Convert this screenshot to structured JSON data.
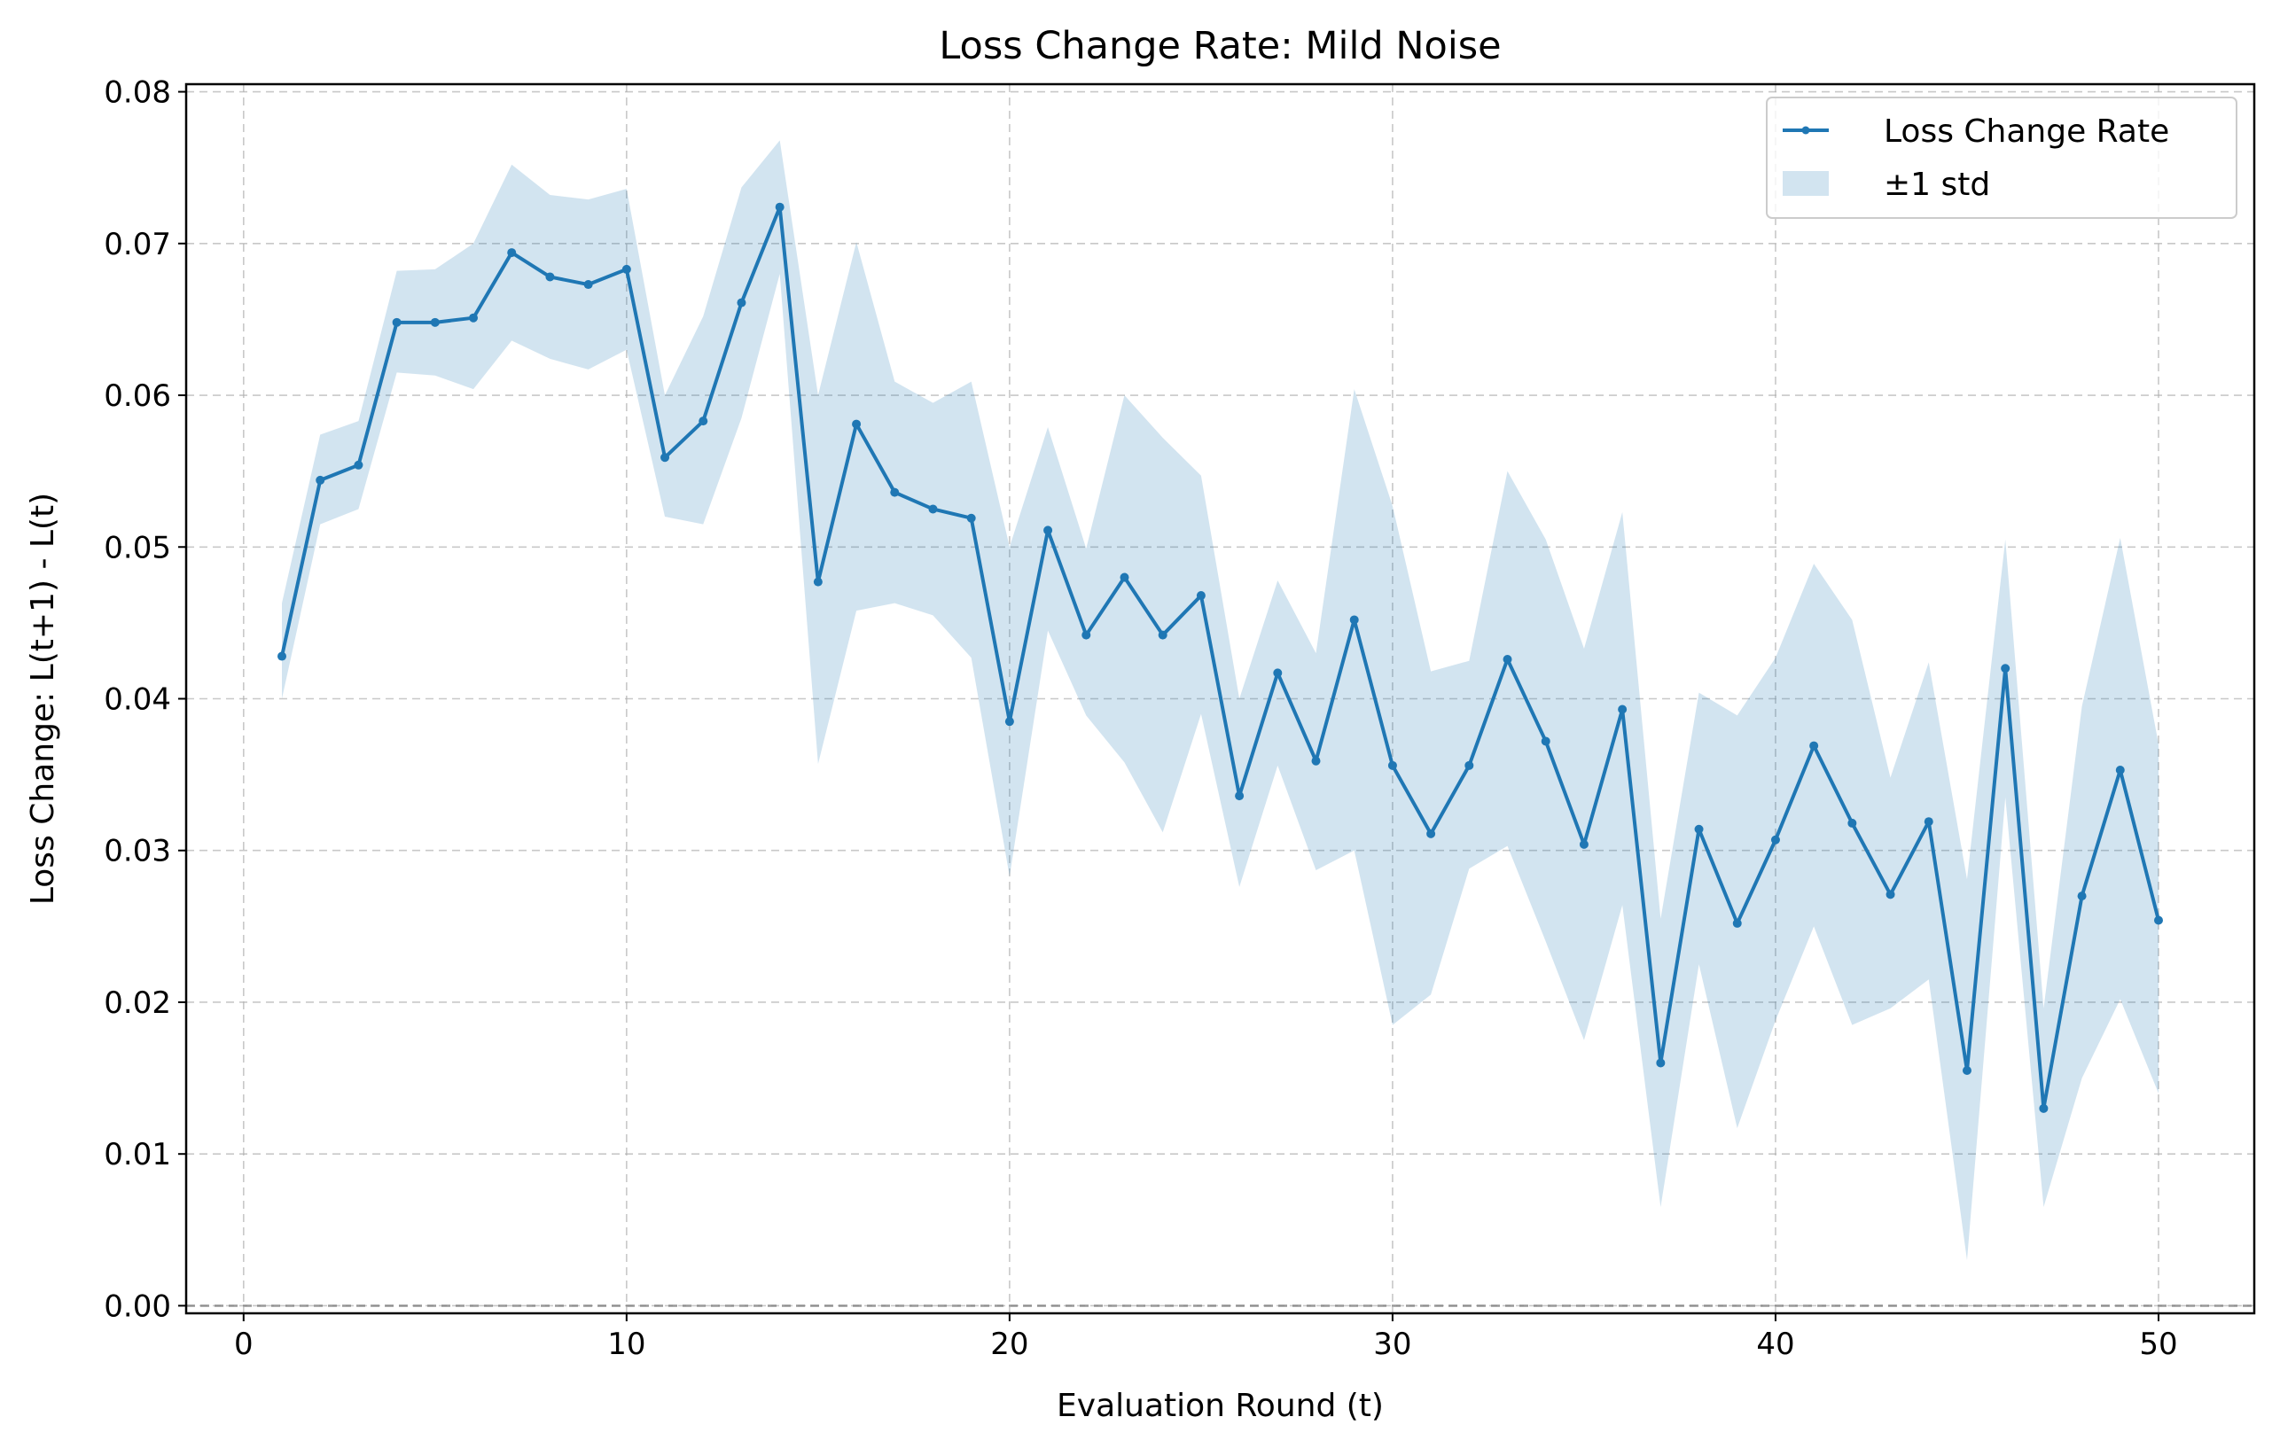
{
  "chart_data": {
    "type": "line",
    "title": "Loss Change Rate: Mild Noise",
    "xlabel": "Evaluation Round (t)",
    "ylabel": "Loss Change: L(t+1) - L(t)",
    "xlim": [
      -1.5,
      52.5
    ],
    "ylim": [
      -0.0005,
      0.0805
    ],
    "xticks": [
      0,
      10,
      20,
      30,
      40,
      50
    ],
    "yticks": [
      0.0,
      0.01,
      0.02,
      0.03,
      0.04,
      0.05,
      0.06,
      0.07,
      0.08
    ],
    "xtick_labels": [
      "0",
      "10",
      "20",
      "30",
      "40",
      "50"
    ],
    "ytick_labels": [
      "0.00",
      "0.01",
      "0.02",
      "0.03",
      "0.04",
      "0.05",
      "0.06",
      "0.07",
      "0.08"
    ],
    "grid": true,
    "legend_position": "top-right",
    "reference_line_y": 0.0,
    "colors": {
      "line": "#1f77b4",
      "band": "#1f77b4",
      "grid": "#b0b0b0",
      "reference": "#808080"
    },
    "series": [
      {
        "name": "Loss Change Rate",
        "x": [
          1,
          2,
          3,
          4,
          5,
          6,
          7,
          8,
          9,
          10,
          11,
          12,
          13,
          14,
          15,
          16,
          17,
          18,
          19,
          20,
          21,
          22,
          23,
          24,
          25,
          26,
          27,
          28,
          29,
          30,
          31,
          32,
          33,
          34,
          35,
          36,
          37,
          38,
          39,
          40,
          41,
          42,
          43,
          44,
          45,
          46,
          47,
          48,
          49,
          50
        ],
        "values": [
          0.0428,
          0.0544,
          0.0554,
          0.0648,
          0.0648,
          0.0651,
          0.0694,
          0.0678,
          0.0673,
          0.0683,
          0.0559,
          0.0583,
          0.0661,
          0.0724,
          0.0477,
          0.0581,
          0.0536,
          0.0525,
          0.0519,
          0.0385,
          0.0511,
          0.0442,
          0.048,
          0.0442,
          0.0468,
          0.0336,
          0.0417,
          0.0359,
          0.0452,
          0.0356,
          0.0311,
          0.0356,
          0.0426,
          0.0372,
          0.0304,
          0.0393,
          0.016,
          0.0314,
          0.0252,
          0.0307,
          0.0369,
          0.0318,
          0.0271,
          0.0319,
          0.0155,
          0.042,
          0.013,
          0.027,
          0.0353,
          0.0254
        ]
      },
      {
        "name": "±1 std",
        "x": [
          1,
          2,
          3,
          4,
          5,
          6,
          7,
          8,
          9,
          10,
          11,
          12,
          13,
          14,
          15,
          16,
          17,
          18,
          19,
          20,
          21,
          22,
          23,
          24,
          25,
          26,
          27,
          28,
          29,
          30,
          31,
          32,
          33,
          34,
          35,
          36,
          37,
          38,
          39,
          40,
          41,
          42,
          43,
          44,
          45,
          46,
          47,
          48,
          49,
          50
        ],
        "lower": [
          0.04,
          0.0515,
          0.0525,
          0.0615,
          0.0613,
          0.0604,
          0.0636,
          0.0624,
          0.0617,
          0.063,
          0.052,
          0.0515,
          0.0585,
          0.068,
          0.0357,
          0.0458,
          0.0463,
          0.0455,
          0.0427,
          0.0283,
          0.0445,
          0.0389,
          0.0358,
          0.0312,
          0.039,
          0.0276,
          0.0356,
          0.0287,
          0.03,
          0.0185,
          0.0205,
          0.0288,
          0.0303,
          0.024,
          0.0175,
          0.0264,
          0.0065,
          0.0225,
          0.0117,
          0.0188,
          0.025,
          0.0185,
          0.0196,
          0.0215,
          0.003,
          0.0335,
          0.0065,
          0.015,
          0.0202,
          0.014
        ],
        "upper": [
          0.0463,
          0.0574,
          0.0583,
          0.0682,
          0.0683,
          0.07,
          0.0752,
          0.0732,
          0.0729,
          0.0736,
          0.06,
          0.0652,
          0.0737,
          0.0768,
          0.06,
          0.0701,
          0.0609,
          0.0595,
          0.0609,
          0.05,
          0.0579,
          0.0499,
          0.06,
          0.0572,
          0.0547,
          0.04,
          0.0478,
          0.043,
          0.0604,
          0.0527,
          0.0418,
          0.0425,
          0.055,
          0.0505,
          0.0433,
          0.0523,
          0.0255,
          0.0404,
          0.0389,
          0.0427,
          0.0489,
          0.0452,
          0.0348,
          0.0424,
          0.0281,
          0.0505,
          0.0196,
          0.0395,
          0.0506,
          0.037
        ]
      }
    ]
  }
}
